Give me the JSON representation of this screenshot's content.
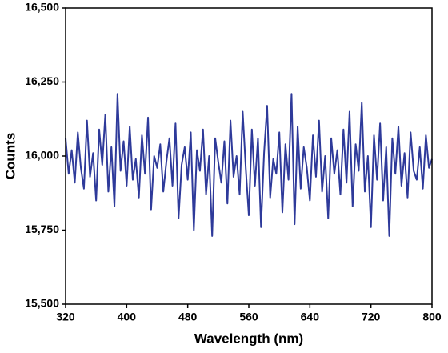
{
  "chart_data": {
    "type": "line",
    "xlabel": "Wavelength (nm)",
    "ylabel": "Counts",
    "color": "#2e3a9a",
    "xlim": [
      320,
      800
    ],
    "xticks": [
      320,
      400,
      480,
      560,
      640,
      720,
      800
    ],
    "ylim": [
      15500,
      16500
    ],
    "yticks": [
      {
        "value": 15500,
        "label": "15,500"
      },
      {
        "value": 15750,
        "label": "15,750"
      },
      {
        "value": 16000,
        "label": "16,000"
      },
      {
        "value": 16250,
        "label": "16,250"
      },
      {
        "value": 16500,
        "label": "16,500"
      }
    ],
    "x": [
      320,
      324,
      328,
      332,
      336,
      340,
      344,
      348,
      352,
      356,
      360,
      364,
      368,
      372,
      376,
      380,
      384,
      388,
      392,
      396,
      400,
      404,
      408,
      412,
      416,
      420,
      424,
      428,
      432,
      436,
      440,
      444,
      448,
      452,
      456,
      460,
      464,
      468,
      472,
      476,
      480,
      484,
      488,
      492,
      496,
      500,
      504,
      508,
      512,
      516,
      520,
      524,
      528,
      532,
      536,
      540,
      544,
      548,
      552,
      556,
      560,
      564,
      568,
      572,
      576,
      580,
      584,
      588,
      592,
      596,
      600,
      604,
      608,
      612,
      616,
      620,
      624,
      628,
      632,
      636,
      640,
      644,
      648,
      652,
      656,
      660,
      664,
      668,
      672,
      676,
      680,
      684,
      688,
      692,
      696,
      700,
      704,
      708,
      712,
      716,
      720,
      724,
      728,
      732,
      736,
      740,
      744,
      748,
      752,
      756,
      760,
      764,
      768,
      772,
      776,
      780,
      784,
      788,
      792,
      796,
      800
    ],
    "values": [
      16060,
      15940,
      16020,
      15910,
      16080,
      15960,
      15890,
      16120,
      15930,
      16010,
      15850,
      16090,
      15970,
      16140,
      15880,
      16030,
      15830,
      16210,
      15950,
      16050,
      15900,
      16100,
      15920,
      15990,
      15860,
      16070,
      15940,
      16130,
      15820,
      16000,
      15960,
      16040,
      15880,
      15980,
      16060,
      15900,
      16110,
      15790,
      15970,
      16030,
      15920,
      16080,
      15750,
      16020,
      15950,
      16090,
      15870,
      16000,
      15730,
      16060,
      15980,
      15910,
      16050,
      15840,
      16120,
      15930,
      16000,
      15870,
      16150,
      15960,
      15800,
      16090,
      15900,
      16060,
      15760,
      16010,
      16170,
      15860,
      15990,
      15940,
      16080,
      15810,
      16040,
      15920,
      16210,
      15770,
      16100,
      15890,
      16030,
      15960,
      15850,
      16070,
      15930,
      16120,
      15880,
      16000,
      15790,
      16060,
      15940,
      16020,
      15870,
      16090,
      15910,
      16150,
      15830,
      16040,
      15950,
      16180,
      15880,
      16000,
      15760,
      16070,
      15920,
      16110,
      15850,
      16030,
      15730,
      16060,
      15940,
      16100,
      15900,
      16010,
      15860,
      16080,
      15950,
      15920,
      16030,
      15890,
      16070,
      15960,
      15990
    ]
  }
}
